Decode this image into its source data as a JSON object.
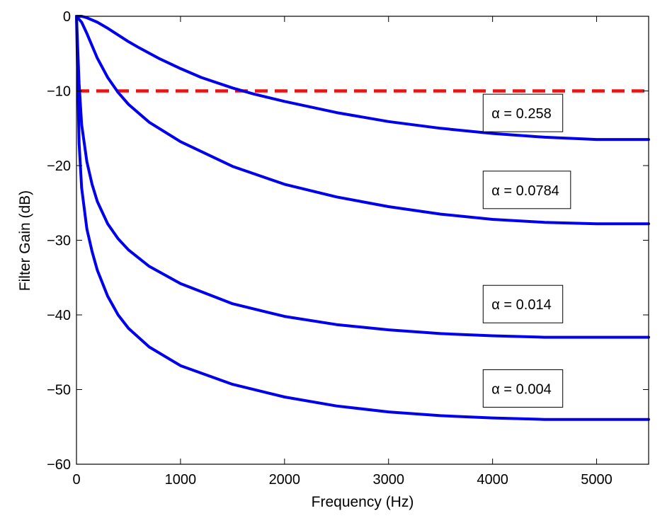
{
  "chart_data": {
    "type": "line",
    "title": "",
    "xlabel": "Frequency (Hz)",
    "ylabel": "Filter Gain (dB)",
    "xlim": [
      0,
      5500
    ],
    "ylim": [
      -60,
      0
    ],
    "xticks": [
      0,
      1000,
      2000,
      3000,
      4000,
      5000
    ],
    "yticks": [
      0,
      -10,
      -20,
      -30,
      -40,
      -50,
      -60
    ],
    "xtick_labels": [
      "0",
      "1000",
      "2000",
      "3000",
      "4000",
      "5000"
    ],
    "ytick_labels": [
      "0",
      "−10",
      "−20",
      "−30",
      "−40",
      "−50",
      "−60"
    ],
    "grid": false,
    "colors": {
      "curves": "#0000ee",
      "threshold": "#ee1111"
    },
    "threshold": {
      "y": -10,
      "style": "dashed"
    },
    "series": [
      {
        "x": [
          0,
          50,
          100,
          200,
          300,
          400,
          500,
          600,
          800,
          1000,
          1200,
          1500,
          1700,
          2000,
          2500,
          3000,
          3500,
          4000,
          4500,
          5000,
          5500
        ],
        "y": [
          0,
          0,
          -0.2,
          -0.8,
          -1.6,
          -2.5,
          -3.4,
          -4.2,
          -5.7,
          -7.0,
          -8.2,
          -9.6,
          -10.4,
          -11.4,
          -12.9,
          -14.1,
          -15.0,
          -15.7,
          -16.2,
          -16.5,
          -16.5
        ]
      },
      {
        "x": [
          0,
          50,
          100,
          200,
          300,
          400,
          500,
          700,
          1000,
          1500,
          2000,
          2500,
          3000,
          3500,
          4000,
          4500,
          5000,
          5500
        ],
        "y": [
          0,
          -0.8,
          -2.3,
          -5.6,
          -8.2,
          -10.2,
          -11.8,
          -14.2,
          -16.8,
          -20.1,
          -22.5,
          -24.2,
          -25.5,
          -26.5,
          -27.2,
          -27.6,
          -27.8,
          -27.8
        ]
      },
      {
        "x": [
          0,
          25,
          50,
          100,
          150,
          200,
          300,
          400,
          500,
          700,
          1000,
          1500,
          2000,
          2500,
          3000,
          3500,
          4000,
          4500,
          5000,
          5500
        ],
        "y": [
          0,
          -9,
          -14.5,
          -19.5,
          -22.5,
          -24.8,
          -27.8,
          -29.8,
          -31.3,
          -33.5,
          -35.8,
          -38.5,
          -40.2,
          -41.3,
          -42.0,
          -42.5,
          -42.8,
          -43.0,
          -43.0,
          -43.0
        ]
      },
      {
        "x": [
          0,
          25,
          50,
          100,
          150,
          200,
          300,
          400,
          500,
          700,
          1000,
          1500,
          2000,
          2500,
          3000,
          3500,
          4000,
          4500,
          5000,
          5500
        ],
        "y": [
          0,
          -17,
          -23,
          -28.5,
          -31.5,
          -34,
          -37.5,
          -40,
          -41.8,
          -44.3,
          -46.8,
          -49.3,
          -51.0,
          -52.2,
          -53.0,
          -53.5,
          -53.8,
          -54.0,
          -54.0,
          -54.0
        ]
      }
    ],
    "annotations": [
      {
        "text": "α = 0.258",
        "x": 3950,
        "y": -13
      },
      {
        "text": "α = 0.0784",
        "x": 3950,
        "y": -23.3
      },
      {
        "text": "α = 0.014",
        "x": 3950,
        "y": -38.6
      },
      {
        "text": "α = 0.004",
        "x": 3950,
        "y": -49.9
      }
    ]
  }
}
